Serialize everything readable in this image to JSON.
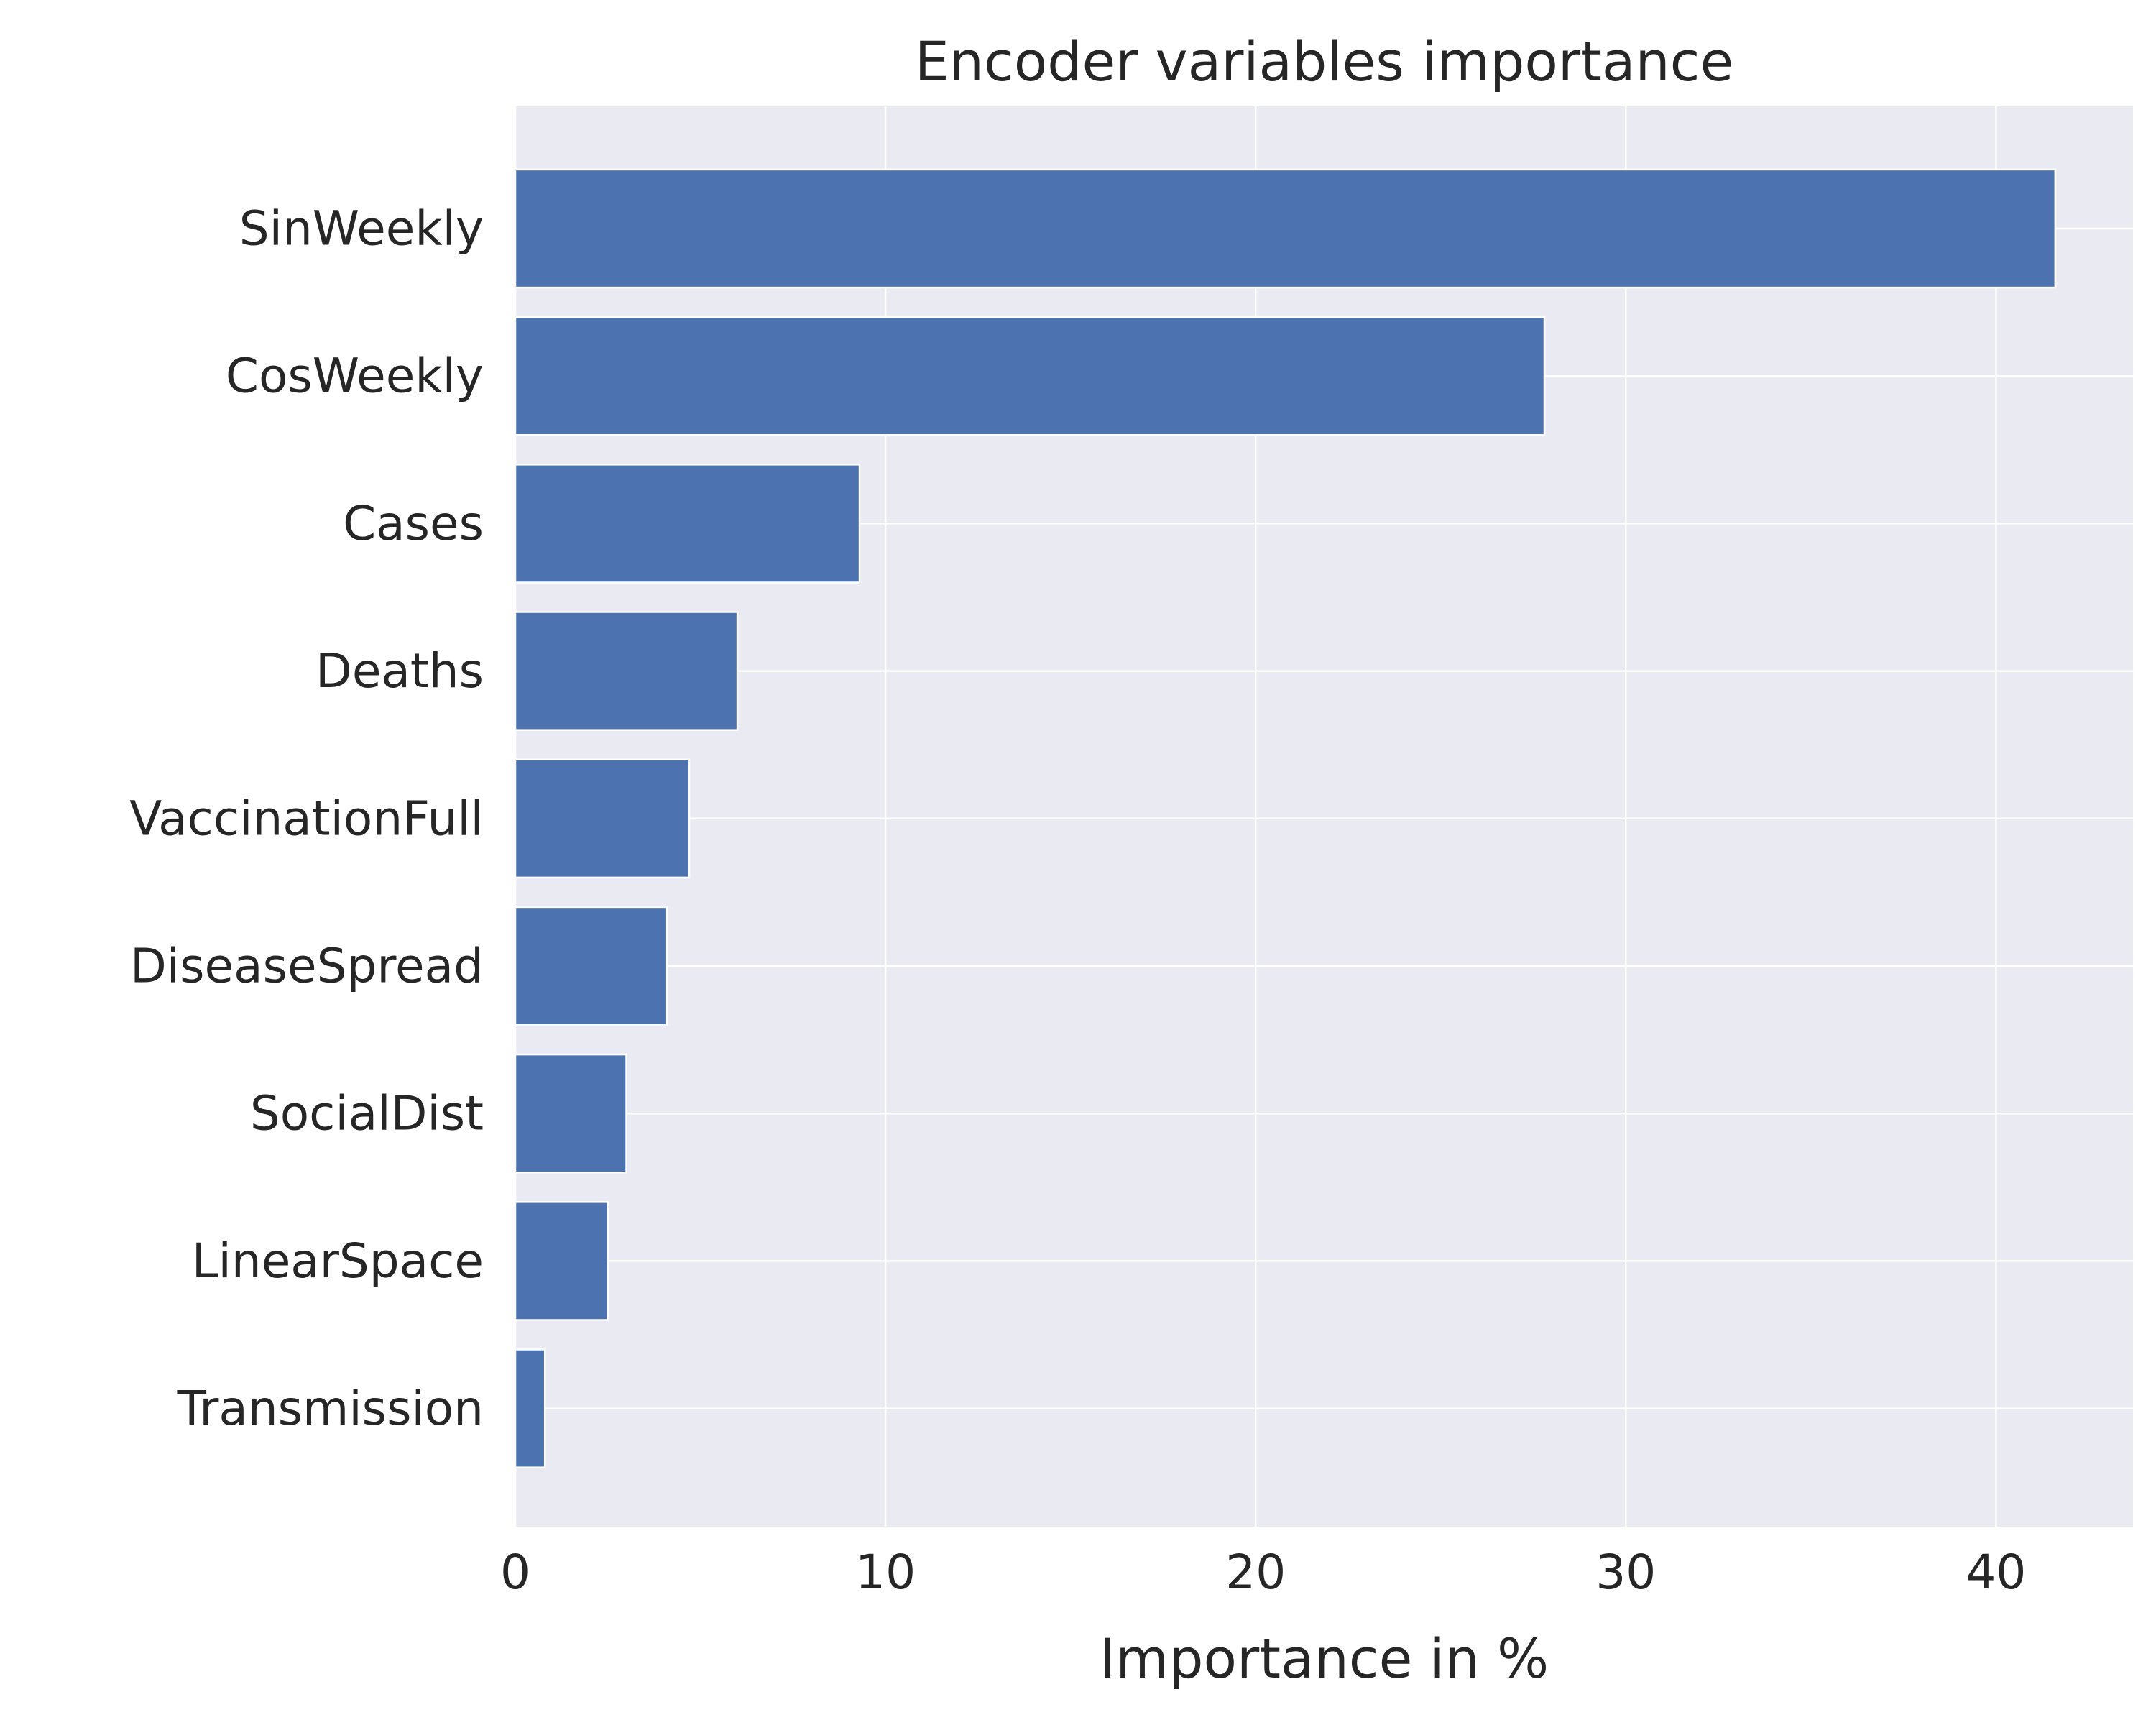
{
  "chart_data": {
    "type": "bar",
    "orientation": "horizontal",
    "title": "Encoder variables importance",
    "xlabel": "Importance in %",
    "ylabel": "",
    "categories": [
      "SinWeekly",
      "CosWeekly",
      "Cases",
      "Deaths",
      "VaccinationFull",
      "DiseaseSpread",
      "SocialDist",
      "LinearSpace",
      "Transmission"
    ],
    "values": [
      41.6,
      27.8,
      9.3,
      6.0,
      4.7,
      4.1,
      3.0,
      2.5,
      0.8
    ],
    "xlim": [
      0,
      43.7
    ],
    "xticks": [
      0,
      10,
      20,
      30,
      40
    ],
    "grid": true,
    "colors": {
      "bar": "#4c72b0",
      "plot_background": "#eaeaf2",
      "grid": "#ffffff",
      "text": "#262626"
    }
  }
}
